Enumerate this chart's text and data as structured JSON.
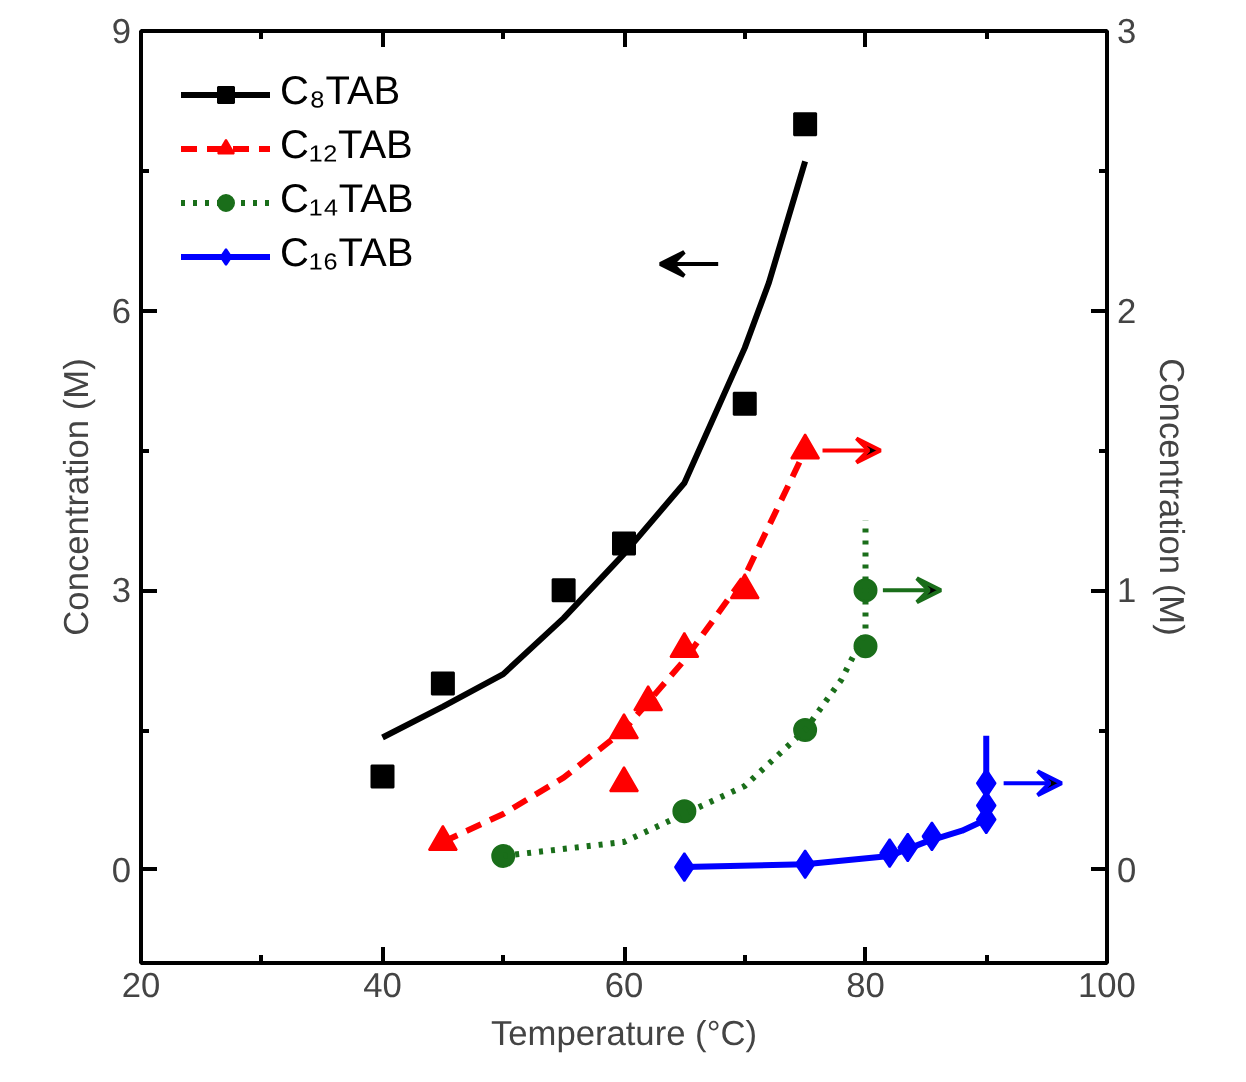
{
  "chart_data": {
    "type": "scatter",
    "xlabel": "Temperature (°C)",
    "ylabel": "Concentration (M)",
    "y2label": "Concentration (M)",
    "xlim": [
      20,
      100
    ],
    "xticks": [
      20,
      40,
      60,
      80,
      100
    ],
    "ylim": [
      -1,
      9
    ],
    "yticks": [
      0,
      3,
      6,
      9
    ],
    "y2lim": [
      -0.333,
      3
    ],
    "y2ticks": [
      0,
      1,
      2,
      3
    ],
    "grid": false,
    "legend": "top left",
    "series": [
      {
        "name": "C₈TAB",
        "color": "#000000",
        "marker": "square",
        "x": [
          40,
          45,
          55,
          60,
          70,
          75
        ],
        "values": [
          1.0,
          2.0,
          3.0,
          3.5,
          5.0,
          8.0
        ]
      },
      {
        "type": "line",
        "color": "#000000",
        "line_style": "solid",
        "x": [
          40,
          45,
          50,
          55,
          60,
          65,
          70,
          72,
          75
        ],
        "values": [
          1.42,
          1.75,
          2.1,
          2.7,
          3.39,
          4.15,
          5.6,
          6.3,
          7.6
        ]
      },
      {
        "name": "C₁₂TAB",
        "color": "#ff0000",
        "marker": "triangle",
        "axis": "y2",
        "x": [
          45,
          60,
          60,
          62,
          65,
          70,
          75
        ],
        "values": [
          0.1,
          0.31,
          0.5,
          0.6,
          0.79,
          1.0,
          1.5
        ]
      },
      {
        "type": "line",
        "color": "#ff0000",
        "line_style": "dashed",
        "axis": "y2",
        "x": [
          45,
          50,
          55,
          60,
          65,
          70,
          75
        ],
        "values": [
          0.1,
          0.2,
          0.33,
          0.5,
          0.75,
          1.05,
          1.5
        ]
      },
      {
        "name": "C₁₄TAB",
        "color": "#1a6e1a",
        "marker": "circle",
        "axis": "y2",
        "x": [
          50,
          65,
          75,
          80,
          80
        ],
        "values": [
          0.05,
          0.21,
          0.5,
          0.8,
          1.0
        ]
      },
      {
        "type": "line",
        "color": "#1a6e1a",
        "line_style": "dotted",
        "axis": "y2",
        "x": [
          50,
          60,
          65,
          70,
          75,
          78,
          80,
          80
        ],
        "values": [
          0.05,
          0.1,
          0.2,
          0.3,
          0.5,
          0.68,
          0.85,
          1.25
        ]
      },
      {
        "name": "C₁₆TAB",
        "color": "#0000ff",
        "marker": "diamond",
        "axis": "y2",
        "x": [
          65,
          75,
          82,
          83.5,
          85.5,
          90,
          90,
          90
        ],
        "values": [
          0.01,
          0.02,
          0.06,
          0.08,
          0.12,
          0.18,
          0.23,
          0.31
        ]
      },
      {
        "type": "line",
        "color": "#0000ff",
        "line_style": "solid",
        "axis": "y2",
        "x": [
          65,
          75,
          82,
          85,
          88,
          90,
          90
        ],
        "values": [
          0.01,
          0.02,
          0.05,
          0.1,
          0.14,
          0.18,
          0.48
        ]
      }
    ]
  }
}
